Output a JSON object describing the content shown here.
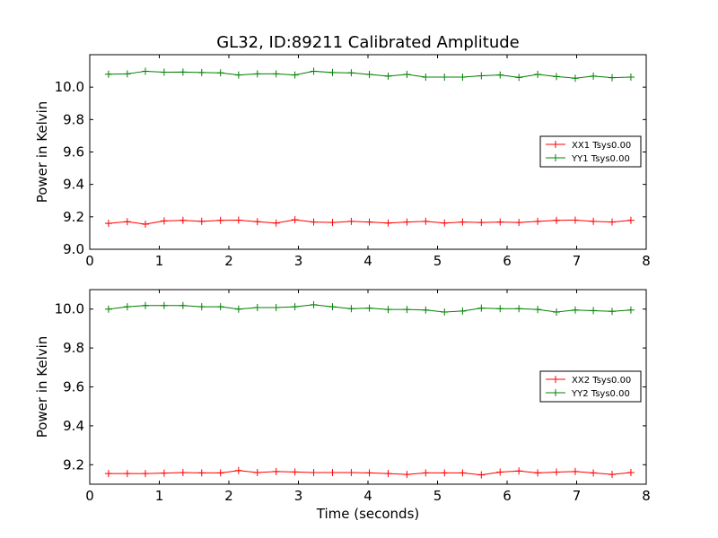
{
  "title": "GL32, ID:89211 Calibrated Amplitude",
  "chart_data": [
    {
      "type": "line",
      "ylabel": "Power in Kelvin",
      "xlabel": "",
      "xlim": [
        0,
        8
      ],
      "ylim": [
        9.0,
        10.2
      ],
      "xticks": [
        "0",
        "1",
        "2",
        "3",
        "4",
        "5",
        "6",
        "7",
        "8"
      ],
      "yticks": [
        "9.0",
        "9.2",
        "9.4",
        "9.6",
        "9.8",
        "10.0"
      ],
      "legend_position": "center-right",
      "x": [
        0.27,
        0.54,
        0.8,
        1.07,
        1.34,
        1.61,
        1.88,
        2.14,
        2.41,
        2.68,
        2.95,
        3.22,
        3.49,
        3.76,
        4.02,
        4.29,
        4.56,
        4.83,
        5.1,
        5.36,
        5.63,
        5.9,
        6.17,
        6.44,
        6.71,
        6.98,
        7.24,
        7.51,
        7.78
      ],
      "series": [
        {
          "name": "XX1 Tsys0.00",
          "color": "#ff0000",
          "values": [
            9.16,
            9.17,
            9.155,
            9.175,
            9.178,
            9.172,
            9.178,
            9.18,
            9.17,
            9.162,
            9.182,
            9.168,
            9.165,
            9.172,
            9.168,
            9.162,
            9.168,
            9.172,
            9.162,
            9.168,
            9.165,
            9.168,
            9.165,
            9.172,
            9.178,
            9.18,
            9.172,
            9.168,
            9.178
          ]
        },
        {
          "name": "YY1 Tsys0.00",
          "color": "#008000",
          "values": [
            10.08,
            10.082,
            10.098,
            10.092,
            10.093,
            10.09,
            10.088,
            10.075,
            10.082,
            10.082,
            10.075,
            10.098,
            10.09,
            10.088,
            10.078,
            10.068,
            10.078,
            10.062,
            10.062,
            10.062,
            10.07,
            10.075,
            10.06,
            10.078,
            10.065,
            10.055,
            10.068,
            10.058,
            10.062
          ]
        }
      ]
    },
    {
      "type": "line",
      "ylabel": "Power in Kelvin",
      "xlabel": "Time (seconds)",
      "xlim": [
        0,
        8
      ],
      "ylim": [
        9.1,
        10.1
      ],
      "xticks": [
        "0",
        "1",
        "2",
        "3",
        "4",
        "5",
        "6",
        "7",
        "8"
      ],
      "yticks": [
        "9.2",
        "9.4",
        "9.6",
        "9.8",
        "10.0"
      ],
      "legend_position": "center-right",
      "x": [
        0.27,
        0.54,
        0.8,
        1.07,
        1.34,
        1.61,
        1.88,
        2.14,
        2.41,
        2.68,
        2.95,
        3.22,
        3.49,
        3.76,
        4.02,
        4.29,
        4.56,
        4.83,
        5.1,
        5.36,
        5.63,
        5.9,
        6.17,
        6.44,
        6.71,
        6.98,
        7.24,
        7.51,
        7.78
      ],
      "series": [
        {
          "name": "XX2 Tsys0.00",
          "color": "#ff0000",
          "values": [
            9.155,
            9.155,
            9.155,
            9.157,
            9.16,
            9.158,
            9.158,
            9.17,
            9.16,
            9.165,
            9.163,
            9.16,
            9.16,
            9.16,
            9.158,
            9.155,
            9.15,
            9.158,
            9.158,
            9.158,
            9.148,
            9.162,
            9.168,
            9.158,
            9.162,
            9.165,
            9.158,
            9.15,
            9.16
          ]
        },
        {
          "name": "YY2 Tsys0.00",
          "color": "#008000",
          "values": [
            10.0,
            10.012,
            10.018,
            10.018,
            10.018,
            10.012,
            10.012,
            10.0,
            10.008,
            10.008,
            10.012,
            10.022,
            10.012,
            10.002,
            10.005,
            9.998,
            9.998,
            9.995,
            9.985,
            9.99,
            10.005,
            10.002,
            10.002,
            9.998,
            9.985,
            9.995,
            9.992,
            9.988,
            9.995
          ]
        }
      ]
    }
  ]
}
